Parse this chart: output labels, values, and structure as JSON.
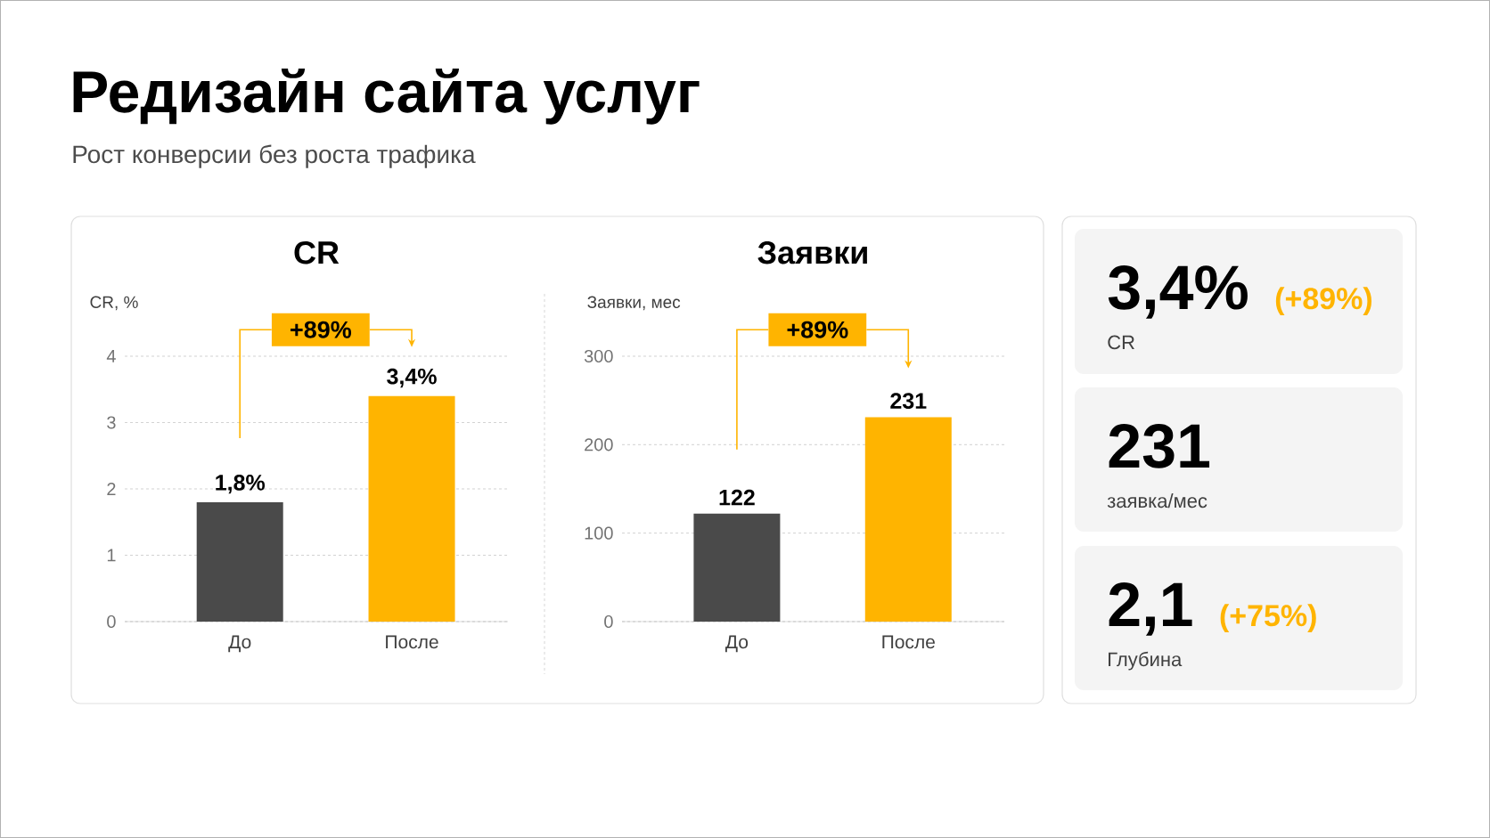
{
  "chart_data": [
    {
      "type": "other",
      "title": "Редизайн сайта услуг",
      "subtitle": "Рост конверсии без роста трафика"
    },
    {
      "type": "bar",
      "title": "CR",
      "ylabel": "CR, %",
      "categories": [
        "До",
        "После"
      ],
      "values": [
        1.8,
        3.4
      ],
      "colors": [
        "#4a4a4a",
        "#ffb400"
      ],
      "ylim": [
        0,
        4
      ],
      "yticks": [
        0,
        1,
        2,
        3,
        4
      ],
      "grid": "y",
      "value_labels": [
        "1,8%",
        "3,4%"
      ],
      "annotations": [
        "+89%"
      ]
    },
    {
      "type": "bar",
      "title": "Заявки",
      "ylabel": "Заявки, мес",
      "categories": [
        "До",
        "После"
      ],
      "values": [
        122,
        231
      ],
      "colors": [
        "#4a4a4a",
        "#ffb400"
      ],
      "ylim": [
        0,
        300
      ],
      "yticks": [
        0,
        100,
        200,
        300
      ],
      "grid": "y",
      "data_labels": true,
      "annotations": [
        "+89%"
      ]
    },
    {
      "type": "other",
      "annotations": [
        "3,4%",
        "(+89%)",
        "CR"
      ]
    },
    {
      "type": "other",
      "annotations": [
        "231",
        "заявка/мес"
      ]
    },
    {
      "type": "other",
      "annotations": [
        "2,1",
        "(+75%)",
        "Глубина"
      ]
    }
  ]
}
